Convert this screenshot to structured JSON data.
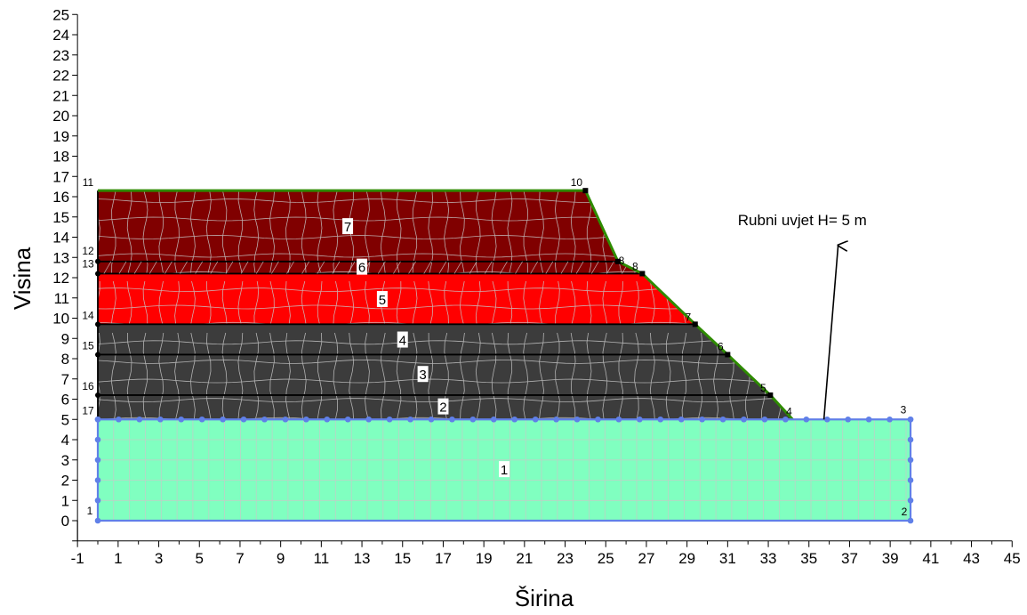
{
  "chart_data": {
    "type": "diagram",
    "xlabel": "Širina",
    "ylabel": "Visina",
    "xlim": [
      -1,
      45
    ],
    "ylim": [
      -1,
      25
    ],
    "x_ticks": [
      -1,
      1,
      3,
      5,
      7,
      9,
      11,
      13,
      15,
      17,
      19,
      21,
      23,
      25,
      27,
      29,
      31,
      33,
      35,
      37,
      39,
      41,
      43,
      45
    ],
    "y_ticks": [
      0,
      1,
      2,
      3,
      4,
      5,
      6,
      7,
      8,
      9,
      10,
      11,
      12,
      13,
      14,
      15,
      16,
      17,
      18,
      19,
      20,
      21,
      22,
      23,
      24,
      25
    ],
    "colors": {
      "region_1": "#80ffc0",
      "region_2_4": "#3c3c3c",
      "region_5": "#ff0000",
      "region_6_7": "#800000",
      "mesh": "#c8c8c8",
      "boundary_top": "#2e8b00",
      "boundary_bc": "#6080e8"
    },
    "points": [
      {
        "label": "1",
        "x": 0,
        "y": 0
      },
      {
        "label": "2",
        "x": 40,
        "y": 0
      },
      {
        "label": "3",
        "x": 40,
        "y": 5
      },
      {
        "label": "4",
        "x": 34.2,
        "y": 5
      },
      {
        "label": "5",
        "x": 33.1,
        "y": 6.2
      },
      {
        "label": "6",
        "x": 31,
        "y": 8.2
      },
      {
        "label": "7",
        "x": 29.4,
        "y": 9.7
      },
      {
        "label": "8",
        "x": 26.8,
        "y": 12.2
      },
      {
        "label": "8",
        "x": 25.6,
        "y": 12.8
      },
      {
        "label": "10",
        "x": 24,
        "y": 16.3
      },
      {
        "label": "11",
        "x": 0,
        "y": 16.3
      },
      {
        "label": "12",
        "x": 0,
        "y": 12.8
      },
      {
        "label": "13",
        "x": 0,
        "y": 12.2
      },
      {
        "label": "14",
        "x": 0,
        "y": 9.7
      },
      {
        "label": "15",
        "x": 0,
        "y": 8.2
      },
      {
        "label": "16",
        "x": 0,
        "y": 6.2
      },
      {
        "label": "17",
        "x": 0,
        "y": 5
      }
    ],
    "regions": [
      {
        "label": "1",
        "x": 20,
        "y": 2.5
      },
      {
        "label": "2",
        "x": 17,
        "y": 5.6
      },
      {
        "label": "3",
        "x": 16,
        "y": 7.2
      },
      {
        "label": "4",
        "x": 15,
        "y": 8.9
      },
      {
        "label": "5",
        "x": 14,
        "y": 10.9
      },
      {
        "label": "6",
        "x": 13,
        "y": 12.5
      },
      {
        "label": "7",
        "x": 12.3,
        "y": 14.5
      }
    ],
    "annotation": {
      "text": "Rubni uvjet H= 5 m",
      "x": 36,
      "y": 5,
      "text_x": 31.5,
      "text_y": 14.6
    }
  }
}
